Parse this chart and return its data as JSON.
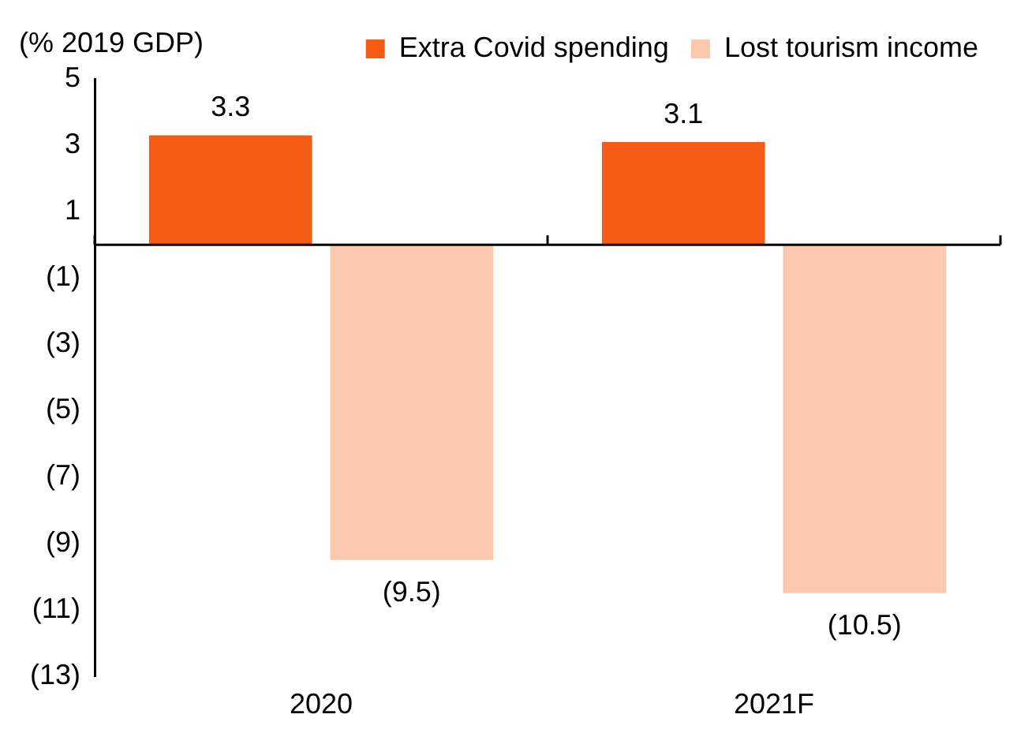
{
  "chart_data": {
    "type": "bar",
    "ylabel": "(% 2019 GDP)",
    "categories": [
      "2020",
      "2021F"
    ],
    "series": [
      {
        "name": "Extra Covid spending",
        "color": "#f45b14",
        "values": [
          3.3,
          3.1
        ],
        "value_labels": [
          "3.3",
          "3.1"
        ]
      },
      {
        "name": "Lost tourism income",
        "color": "#fbc9ae",
        "values": [
          -9.5,
          -10.5
        ],
        "value_labels": [
          "(9.5)",
          "(10.5)"
        ]
      }
    ],
    "ylim": [
      -13,
      5
    ],
    "yticks": [
      {
        "value": -13,
        "label": "(13)"
      },
      {
        "value": -11,
        "label": "(11)"
      },
      {
        "value": -9,
        "label": "(9)"
      },
      {
        "value": -7,
        "label": "(7)"
      },
      {
        "value": -5,
        "label": "(5)"
      },
      {
        "value": -3,
        "label": "(3)"
      },
      {
        "value": -1,
        "label": "(1)"
      },
      1,
      3,
      5
    ],
    "legend": "top",
    "grid": false
  }
}
